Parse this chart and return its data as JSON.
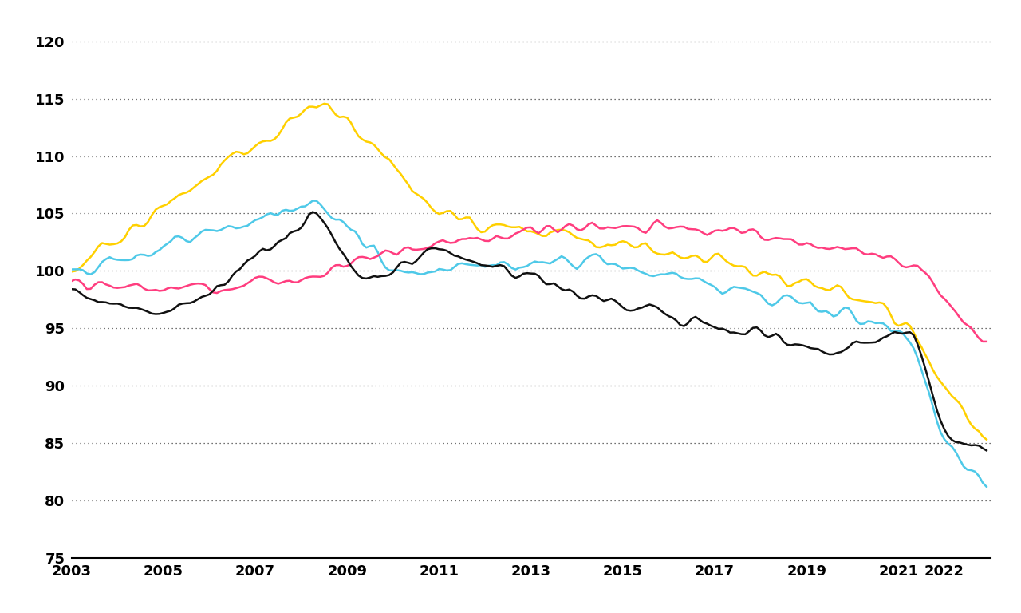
{
  "colors": {
    "usa": "#FF3D7F",
    "eurozone": "#4EC9E8",
    "uk": "#FFD000",
    "switzerland": "#111111"
  },
  "line_width": 1.8,
  "ylim": [
    75,
    122
  ],
  "yticks": [
    75,
    80,
    85,
    90,
    95,
    100,
    105,
    110,
    115,
    120
  ],
  "xlim_start": 2003.0,
  "xlim_end": 2023.0,
  "background_color": "#FFFFFF",
  "grid_color": "#444444",
  "axis_label_fontsize": 13,
  "font_weight": "bold"
}
